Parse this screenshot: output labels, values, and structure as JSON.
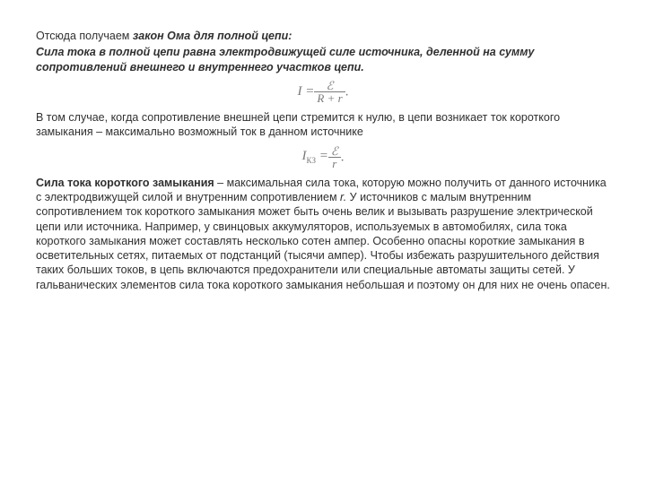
{
  "doc": {
    "text_color": "#303030",
    "formula_color": "#7a7a7a",
    "background_color": "#ffffff",
    "font_family": "Arial",
    "font_size_pt": 12.5,
    "formula_font_family": "Times New Roman",
    "p1_pre": "Отсюда получаем ",
    "p1_bi": "закон Ома для полной цепи:",
    "p2": "Сила тока в полной цепи равна электродвижущей силе источника, деленной на сумму сопротивлений внешнего и внутреннего участков цепи.",
    "formula1": {
      "left": "I = ",
      "num": "ℰ",
      "den": "R + r",
      "tail": "."
    },
    "p3": "В том случае, когда сопротивление внешней цепи стремится к нулю, в цепи возникает ток короткого замыкания – максимально возможный ток в данном источнике",
    "formula2": {
      "left_sym": "I",
      "left_sub": "КЗ",
      "left_eq": " = ",
      "num": "ℰ",
      "den": "r",
      "tail": "."
    },
    "p4_bold": "Сила тока короткого замыкания",
    "p4_rest1": " – максимальная сила тока, которую можно получить от данного источника с электродвижущей силой и внутренним сопротивлением ",
    "p4_r": "r.",
    "p4_rest2": " У источников с малым внутренним сопротивлением ток короткого замыкания может быть очень велик и вызывать разрушение электрической цепи или источника. Например, у свинцовых аккумуляторов, используемых в автомобилях, сила тока короткого замыкания может составлять несколько сотен ампер. Особенно опасны короткие замыкания в осветительных сетях, питаемых от подстанций (тысячи ампер). Чтобы избежать разрушительного действия таких больших токов, в цепь включаются предохранители или специальные автоматы защиты сетей. У гальванических элементов сила тока короткого замыкания небольшая и поэтому он для них не очень опасен."
  }
}
